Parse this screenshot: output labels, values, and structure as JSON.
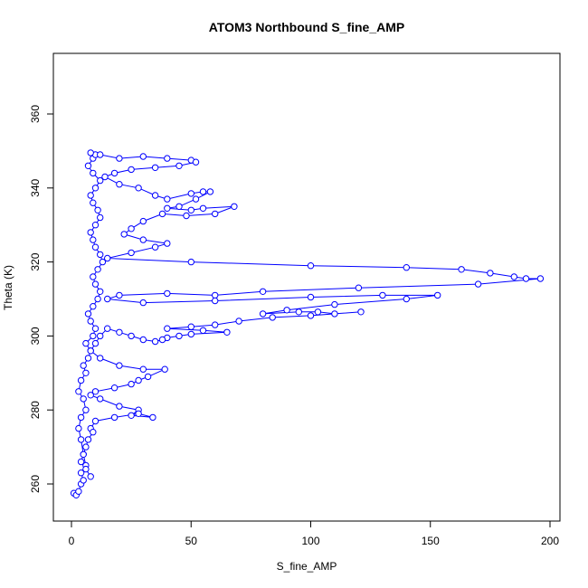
{
  "chart_data": {
    "type": "line",
    "title": "ATOM3 Northbound S_fine_AMP",
    "xlabel": "S_fine_AMP",
    "ylabel": "Theta (K)",
    "xlim": [
      0,
      200
    ],
    "ylim": [
      250,
      375
    ],
    "xticks": [
      0,
      50,
      100,
      150,
      200
    ],
    "yticks": [
      260,
      280,
      300,
      320,
      340,
      360
    ],
    "markers": "open-circle",
    "grid": false,
    "color": "#0000ff",
    "series": [
      {
        "points": [
          [
            1,
            257.5
          ],
          [
            2,
            257
          ],
          [
            3,
            258
          ],
          [
            4,
            260
          ],
          [
            5,
            261
          ],
          [
            4,
            263
          ],
          [
            6,
            265
          ],
          [
            5,
            268
          ],
          [
            4,
            272
          ],
          [
            3,
            275
          ],
          [
            4,
            278
          ],
          [
            6,
            280
          ],
          [
            5,
            283
          ],
          [
            3,
            285
          ],
          [
            4,
            288
          ],
          [
            6,
            290
          ],
          [
            5,
            292
          ],
          [
            7,
            294
          ],
          [
            8,
            296
          ],
          [
            6,
            298
          ],
          [
            9,
            300
          ],
          [
            10,
            302
          ],
          [
            8,
            304
          ],
          [
            7,
            306
          ],
          [
            9,
            308
          ],
          [
            11,
            310
          ],
          [
            12,
            312
          ],
          [
            10,
            314
          ],
          [
            9,
            316
          ],
          [
            11,
            318
          ],
          [
            13,
            320
          ],
          [
            12,
            322
          ],
          [
            10,
            324
          ],
          [
            9,
            326
          ],
          [
            8,
            328
          ],
          [
            10,
            330
          ],
          [
            12,
            332
          ],
          [
            11,
            334
          ],
          [
            9,
            336
          ],
          [
            8,
            338
          ],
          [
            10,
            340
          ],
          [
            12,
            342
          ],
          [
            9,
            344
          ],
          [
            7,
            346
          ],
          [
            9,
            348
          ],
          [
            10,
            349
          ],
          [
            8,
            349.5
          ],
          [
            12,
            349
          ],
          [
            20,
            348
          ],
          [
            30,
            348.5
          ],
          [
            40,
            348
          ],
          [
            50,
            347.5
          ],
          [
            52,
            347
          ],
          [
            45,
            346
          ],
          [
            35,
            345.5
          ],
          [
            25,
            345
          ],
          [
            18,
            344
          ],
          [
            14,
            343
          ],
          [
            20,
            341
          ],
          [
            28,
            340
          ],
          [
            35,
            338
          ],
          [
            40,
            337
          ],
          [
            50,
            338.5
          ],
          [
            55,
            339
          ],
          [
            58,
            339
          ],
          [
            52,
            337
          ],
          [
            45,
            335
          ],
          [
            40,
            334.5
          ],
          [
            50,
            334
          ],
          [
            55,
            334.5
          ],
          [
            68,
            335
          ],
          [
            60,
            333
          ],
          [
            48,
            332.5
          ],
          [
            38,
            333
          ],
          [
            30,
            331
          ],
          [
            25,
            329
          ],
          [
            22,
            327.5
          ],
          [
            30,
            326
          ],
          [
            40,
            325
          ],
          [
            35,
            324
          ],
          [
            25,
            322.5
          ],
          [
            15,
            321
          ],
          [
            50,
            320
          ],
          [
            100,
            319
          ],
          [
            140,
            318.5
          ],
          [
            163,
            318
          ],
          [
            175,
            317
          ],
          [
            185,
            316
          ],
          [
            190,
            315.5
          ],
          [
            196,
            315.5
          ],
          [
            170,
            314
          ],
          [
            120,
            313
          ],
          [
            80,
            312
          ],
          [
            60,
            311
          ],
          [
            40,
            311.5
          ],
          [
            20,
            311
          ],
          [
            15,
            310
          ],
          [
            30,
            309
          ],
          [
            60,
            309.5
          ],
          [
            100,
            310.5
          ],
          [
            130,
            311
          ],
          [
            153,
            311
          ],
          [
            140,
            310
          ],
          [
            110,
            308.5
          ],
          [
            90,
            307
          ],
          [
            80,
            306
          ],
          [
            95,
            306.5
          ],
          [
            103,
            306.5
          ],
          [
            110,
            306
          ],
          [
            121,
            306.5
          ],
          [
            100,
            305.5
          ],
          [
            84,
            305
          ],
          [
            70,
            304
          ],
          [
            60,
            303
          ],
          [
            50,
            302.5
          ],
          [
            40,
            302
          ],
          [
            55,
            301.5
          ],
          [
            65,
            301
          ],
          [
            50,
            300.5
          ],
          [
            45,
            300
          ],
          [
            40,
            299.5
          ],
          [
            38,
            299
          ],
          [
            35,
            298.5
          ],
          [
            30,
            299
          ],
          [
            25,
            300
          ],
          [
            20,
            301
          ],
          [
            15,
            302
          ],
          [
            12,
            300
          ],
          [
            10,
            298
          ],
          [
            8,
            296
          ],
          [
            12,
            294
          ],
          [
            20,
            292
          ],
          [
            30,
            291
          ],
          [
            39,
            291
          ],
          [
            32,
            289
          ],
          [
            28,
            288
          ],
          [
            25,
            287
          ],
          [
            18,
            286
          ],
          [
            10,
            285
          ],
          [
            8,
            284
          ],
          [
            12,
            283
          ],
          [
            20,
            281
          ],
          [
            28,
            280
          ],
          [
            25,
            278.5
          ],
          [
            34,
            278
          ],
          [
            28,
            279
          ],
          [
            18,
            278
          ],
          [
            10,
            277
          ],
          [
            8,
            275
          ],
          [
            9,
            274
          ],
          [
            7,
            272
          ],
          [
            6,
            270
          ],
          [
            5,
            268
          ],
          [
            4,
            266
          ],
          [
            6,
            264
          ],
          [
            8,
            262
          ]
        ]
      }
    ]
  }
}
